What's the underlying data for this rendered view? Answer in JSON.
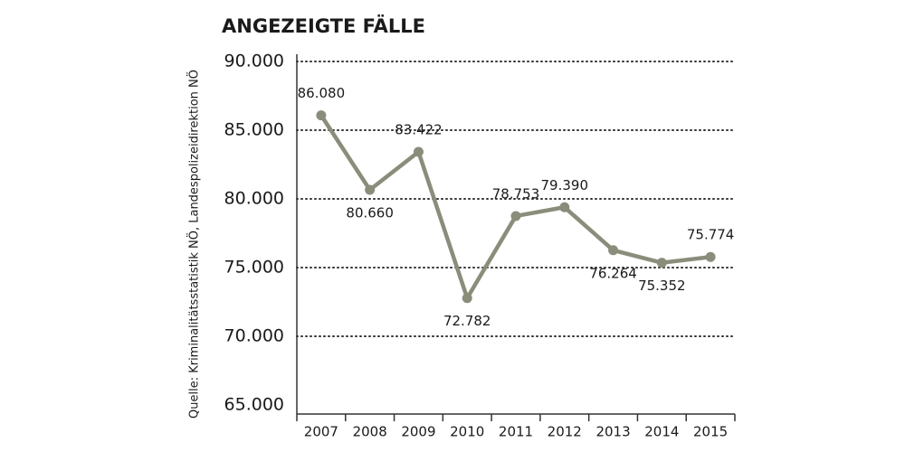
{
  "chart_data": {
    "type": "line",
    "title": "ANGEZEIGTE FÄLLE",
    "source": "Quelle: Kriminalitätsstatistik NÖ, Landespolizeidirektion NÖ",
    "categories": [
      "2007",
      "2008",
      "2009",
      "2010",
      "2011",
      "2012",
      "2013",
      "2014",
      "2015"
    ],
    "values": [
      86080,
      80660,
      83422,
      72782,
      78753,
      79390,
      76264,
      75352,
      75774
    ],
    "value_labels": [
      "86.080",
      "80.660",
      "83.422",
      "72.782",
      "78.753",
      "79.390",
      "76.264",
      "75.352",
      "75.774"
    ],
    "color": "#8b8d7b",
    "ylim": [
      65000,
      90000
    ],
    "yticks": [
      {
        "value": 65000,
        "label": "65.000"
      },
      {
        "value": 70000,
        "label": "70.000"
      },
      {
        "value": 75000,
        "label": "75.000"
      },
      {
        "value": 80000,
        "label": "80.000"
      },
      {
        "value": 85000,
        "label": "85.000"
      },
      {
        "value": 90000,
        "label": "90.000"
      }
    ],
    "grid": true
  }
}
